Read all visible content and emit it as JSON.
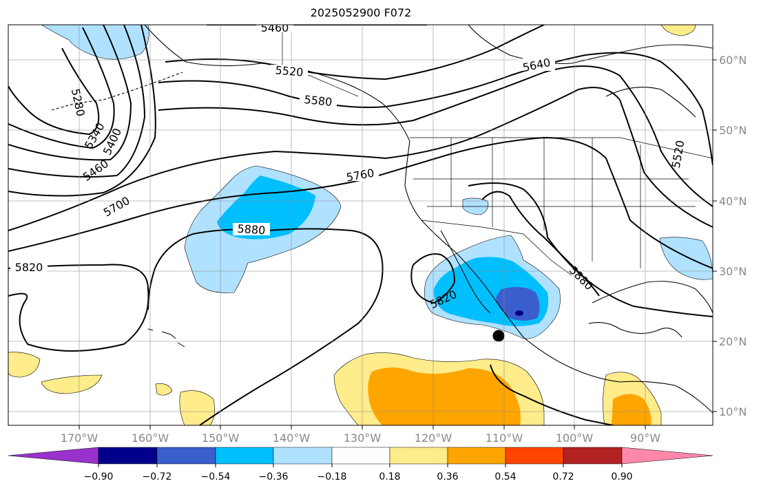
{
  "title": "2025052900 F072",
  "map": {
    "lon_range": [
      -180,
      -80
    ],
    "lat_range": [
      8,
      66
    ],
    "grid": true,
    "lon_ticks": [
      "170°W",
      "160°W",
      "150°W",
      "140°W",
      "130°W",
      "120°W",
      "110°W",
      "100°W",
      "90°W"
    ],
    "lat_ticks": [
      "60°N",
      "50°N",
      "40°N",
      "30°N",
      "20°N",
      "10°N"
    ],
    "fill_colors": {
      "below_-0.90": "#9932cc",
      "-0.90_-0.72": "#00008b",
      "-0.72_-0.54": "#3a5fcd",
      "-0.54_-0.36": "#00bfff",
      "-0.36_-0.18": "#b0e2ff",
      "-0.18_0.18": "#ffffff",
      "0.18_0.36": "#ffec8b",
      "0.36_0.54": "#ffa500",
      "0.54_0.72": "#ff4500",
      "0.72_0.90": "#b22222",
      "above_0.90": "#ff88aa"
    }
  },
  "contours": {
    "labels": [
      "5460",
      "5520",
      "5580",
      "5640",
      "5280",
      "5340",
      "5400",
      "5460",
      "5520",
      "5760",
      "5700",
      "5880",
      "5820",
      "5820",
      "5880"
    ]
  },
  "colorbar": {
    "ticks": [
      "−0.90",
      "−0.72",
      "−0.54",
      "−0.36",
      "−0.18",
      "0.18",
      "0.36",
      "0.54",
      "0.72",
      "0.90"
    ],
    "colors": [
      "#9932cc",
      "#00008b",
      "#3a5fcd",
      "#00bfff",
      "#b0e2ff",
      "#ffffff",
      "#ffec8b",
      "#ffa500",
      "#ff4500",
      "#b22222",
      "#ff88aa"
    ]
  }
}
